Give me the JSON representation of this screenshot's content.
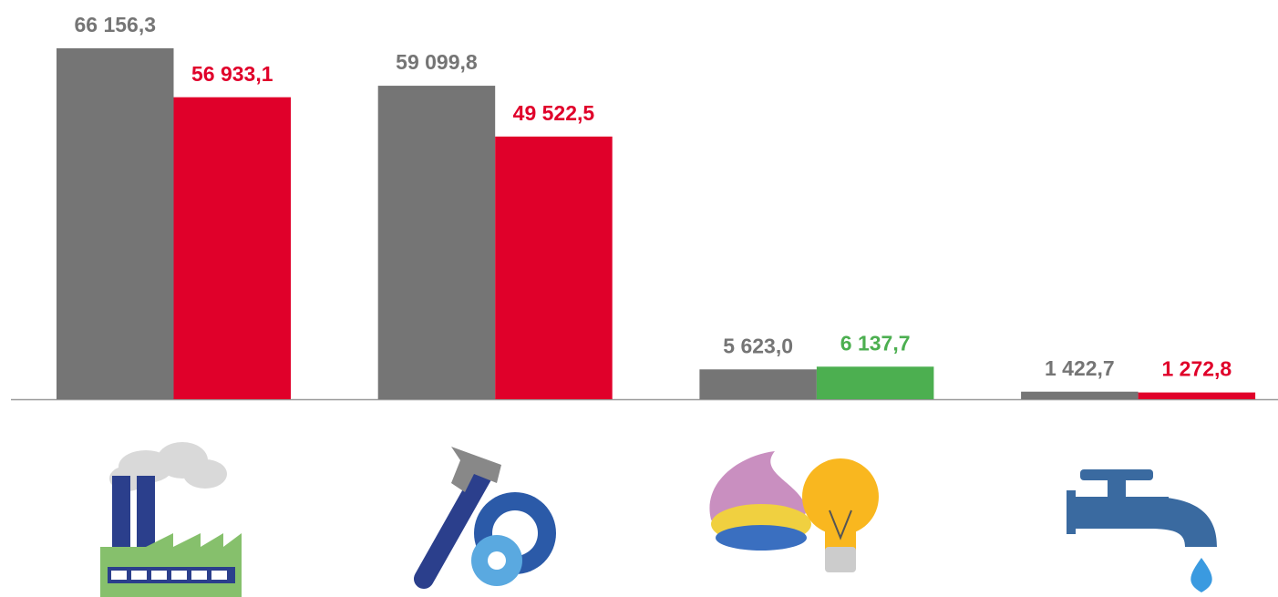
{
  "chart_data": {
    "type": "bar",
    "categories": [
      null,
      null,
      null,
      null
    ],
    "series": [
      {
        "color": "#757575",
        "values": [
          66156.3,
          59099.8,
          5623.0,
          1422.7
        ],
        "value_labels": [
          "66 156,3",
          "59 099,8",
          "5 623,0",
          "1 422,7"
        ]
      },
      {
        "colors": [
          "#e0002a",
          "#e0002a",
          "#4caf50",
          "#e0002a"
        ],
        "values": [
          56933.1,
          49522.5,
          6137.7,
          1272.8
        ],
        "value_labels": [
          "56 933,1",
          "49 522,5",
          "6 137,7",
          "1 272,8"
        ]
      }
    ]
  }
}
